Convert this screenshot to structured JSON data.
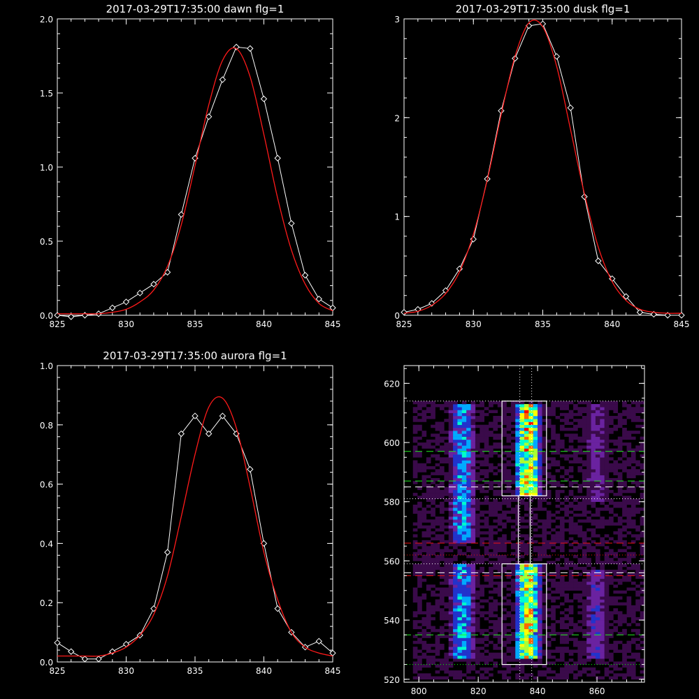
{
  "chart_data": [
    {
      "type": "line",
      "title": "2017-03-29T17:35:00 dawn flg=1",
      "xlim": [
        825,
        845
      ],
      "ylim": [
        0,
        2.0
      ],
      "xticks": [
        "825",
        "830",
        "835",
        "840",
        "845"
      ],
      "yticks": [
        "0.0",
        "0.5",
        "1.0",
        "1.5",
        "2.0"
      ],
      "series": [
        {
          "style": "data",
          "color": "#ffffff",
          "x": [
            825,
            826,
            827,
            828,
            829,
            830,
            831,
            832,
            833,
            834,
            835,
            836,
            837,
            838,
            839,
            840,
            841,
            842,
            843,
            844,
            845
          ],
          "y": [
            0.0,
            -0.01,
            0.0,
            0.01,
            0.05,
            0.09,
            0.15,
            0.21,
            0.29,
            0.68,
            1.06,
            1.34,
            1.59,
            1.81,
            1.8,
            1.46,
            1.06,
            0.62,
            0.27,
            0.11,
            0.05
          ]
        },
        {
          "style": "fit",
          "color": "#ff1a1a",
          "x": [
            825,
            826,
            827,
            828,
            829,
            830,
            831,
            832,
            833,
            834,
            835,
            836,
            837,
            838,
            839,
            840,
            841,
            842,
            843,
            844,
            845
          ],
          "y": [
            0.01,
            0.01,
            0.01,
            0.01,
            0.02,
            0.04,
            0.09,
            0.17,
            0.33,
            0.61,
            1.01,
            1.42,
            1.72,
            1.8,
            1.61,
            1.22,
            0.79,
            0.44,
            0.21,
            0.08,
            0.03
          ]
        }
      ]
    },
    {
      "type": "line",
      "title": "2017-03-29T17:35:00 dusk flg=1",
      "xlim": [
        825,
        845
      ],
      "ylim": [
        0,
        3
      ],
      "xticks": [
        "825",
        "830",
        "835",
        "840",
        "845"
      ],
      "yticks": [
        "0",
        "1",
        "2",
        "3"
      ],
      "series": [
        {
          "style": "data",
          "color": "#ffffff",
          "x": [
            825,
            826,
            827,
            828,
            829,
            830,
            831,
            832,
            833,
            834,
            835,
            836,
            837,
            838,
            839,
            840,
            841,
            842,
            843,
            844,
            845
          ],
          "y": [
            0.03,
            0.06,
            0.12,
            0.25,
            0.47,
            0.77,
            1.38,
            2.07,
            2.6,
            2.93,
            2.95,
            2.62,
            2.1,
            1.2,
            0.55,
            0.37,
            0.19,
            0.03,
            0.01,
            0.0,
            0.0
          ]
        },
        {
          "style": "fit",
          "color": "#ff1a1a",
          "x": [
            825,
            826,
            827,
            828,
            829,
            830,
            831,
            832,
            833,
            834,
            835,
            836,
            837,
            838,
            839,
            840,
            841,
            842,
            843,
            844,
            845
          ],
          "y": [
            0.02,
            0.04,
            0.1,
            0.22,
            0.44,
            0.82,
            1.37,
            2.03,
            2.62,
            2.96,
            2.92,
            2.52,
            1.88,
            1.23,
            0.69,
            0.34,
            0.15,
            0.06,
            0.03,
            0.02,
            0.02
          ]
        }
      ]
    },
    {
      "type": "line",
      "title": "2017-03-29T17:35:00 aurora flg=1",
      "xlim": [
        825,
        845
      ],
      "ylim": [
        0,
        1.0
      ],
      "xticks": [
        "825",
        "830",
        "835",
        "840",
        "845"
      ],
      "yticks": [
        "0.0",
        "0.2",
        "0.4",
        "0.6",
        "0.8",
        "1.0"
      ],
      "series": [
        {
          "style": "data",
          "color": "#ffffff",
          "x": [
            825,
            826,
            827,
            828,
            829,
            830,
            831,
            832,
            833,
            834,
            835,
            836,
            837,
            838,
            839,
            840,
            841,
            842,
            843,
            844,
            845
          ],
          "y": [
            0.065,
            0.035,
            0.01,
            0.01,
            0.035,
            0.06,
            0.09,
            0.18,
            0.37,
            0.77,
            0.83,
            0.77,
            0.83,
            0.77,
            0.65,
            0.4,
            0.18,
            0.1,
            0.05,
            0.07,
            0.03
          ]
        },
        {
          "style": "fit",
          "color": "#ff1a1a",
          "x": [
            825,
            826,
            827,
            828,
            829,
            830,
            831,
            832,
            833,
            834,
            835,
            836,
            837,
            838,
            839,
            840,
            841,
            842,
            843,
            844,
            845
          ],
          "y": [
            0.02,
            0.02,
            0.02,
            0.02,
            0.03,
            0.05,
            0.09,
            0.16,
            0.29,
            0.49,
            0.7,
            0.86,
            0.89,
            0.79,
            0.59,
            0.37,
            0.21,
            0.1,
            0.05,
            0.03,
            0.02
          ]
        }
      ]
    },
    {
      "type": "heatmap",
      "xlim": [
        795,
        876
      ],
      "ylim": [
        519,
        626
      ],
      "xticks": [
        "800",
        "820",
        "840",
        "860"
      ],
      "yticks": [
        "520",
        "540",
        "560",
        "580",
        "600",
        "620"
      ],
      "colormap": [
        "#000000",
        "#3a0a4a",
        "#6a22a0",
        "#2233cc",
        "#00aaff",
        "#00ffcc",
        "#aaff33",
        "#ffff00",
        "#ff6600",
        "#ff0000"
      ],
      "bands": [
        {
          "x_center": 814,
          "x_width": 10,
          "y_from": 566,
          "y_to": 612,
          "intensity": 0.5
        },
        {
          "x_center": 814,
          "x_width": 10,
          "y_from": 527,
          "y_to": 558,
          "intensity": 0.5
        },
        {
          "x_center": 836,
          "x_width": 10,
          "y_from": 582,
          "y_to": 612,
          "intensity": 0.9
        },
        {
          "x_center": 836,
          "x_width": 10,
          "y_from": 527,
          "y_to": 558,
          "intensity": 0.85
        },
        {
          "x_center": 859,
          "x_width": 9,
          "y_from": 580,
          "y_to": 612,
          "intensity": 0.25
        },
        {
          "x_center": 859,
          "x_width": 9,
          "y_from": 527,
          "y_to": 556,
          "intensity": 0.3
        }
      ],
      "boxes": [
        {
          "x": [
            828,
            843
          ],
          "y": [
            582,
            614
          ]
        },
        {
          "x": [
            828,
            843
          ],
          "y": [
            525,
            559
          ]
        },
        {
          "x": [
            833.5,
            837.5
          ],
          "y": [
            559,
            582
          ]
        }
      ],
      "hlines": [
        {
          "y": 614,
          "color": "#ffffff",
          "style": "dotted"
        },
        {
          "y": 581,
          "color": "#ffffff",
          "style": "dotted"
        },
        {
          "y": 559,
          "color": "#ffffff",
          "style": "dotted"
        },
        {
          "y": 525,
          "color": "#00ff00",
          "style": "dotted"
        },
        {
          "y": 597,
          "color": "#22ee22",
          "style": "dashed"
        },
        {
          "y": 587,
          "color": "#22ee22",
          "style": "dashed"
        },
        {
          "y": 585,
          "color": "#ffffff",
          "style": "dashed"
        },
        {
          "y": 566,
          "color": "#ee1111",
          "style": "dashed"
        },
        {
          "y": 562,
          "color": "#ee1111",
          "style": "dotted"
        },
        {
          "y": 556,
          "color": "#ffffff",
          "style": "dashed"
        },
        {
          "y": 555,
          "color": "#ee1111",
          "style": "dashed"
        },
        {
          "y": 535,
          "color": "#22ee22",
          "style": "dashed"
        }
      ],
      "vlines": [
        {
          "x": 834,
          "color": "#ffffff",
          "style": "dotted"
        },
        {
          "x": 838,
          "color": "#ffffff",
          "style": "dotted"
        }
      ]
    }
  ]
}
